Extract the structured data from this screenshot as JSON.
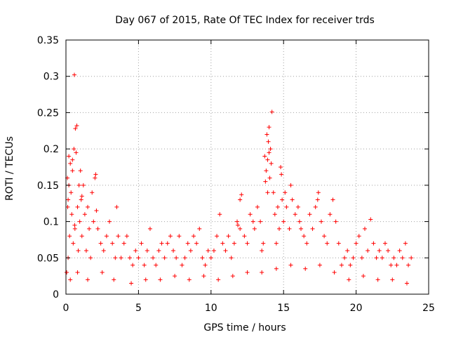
{
  "chart_data": {
    "type": "scatter",
    "title": "Day 067 of 2015, Rate Of TEC Index for receiver trds",
    "xlabel": "GPS time / hours",
    "ylabel": "ROTI / TECUs",
    "xlim": [
      0,
      25
    ],
    "ylim": [
      0,
      0.35
    ],
    "xticks": [
      0,
      5,
      10,
      15,
      20,
      25
    ],
    "xtick_labels": [
      "0",
      "5",
      "10",
      "15",
      "20",
      "25"
    ],
    "yticks": [
      0,
      0.05,
      0.1,
      0.15,
      0.2,
      0.25,
      0.3,
      0.35
    ],
    "ytick_labels": [
      "0",
      "0.05",
      "0.1",
      "0.15",
      "0.2",
      "0.25",
      "0.3",
      "0.35"
    ],
    "grid": true,
    "marker": "+",
    "marker_color": "#ff0000",
    "grid_color": "#a0a0a0",
    "series": [
      {
        "name": "ROTI",
        "points": [
          [
            0.05,
            0.03
          ],
          [
            0.1,
            0.16
          ],
          [
            0.12,
            0.12
          ],
          [
            0.15,
            0.05
          ],
          [
            0.2,
            0.19
          ],
          [
            0.25,
            0.08
          ],
          [
            0.3,
            0.18
          ],
          [
            0.35,
            0.14
          ],
          [
            0.4,
            0.11
          ],
          [
            0.45,
            0.17
          ],
          [
            0.5,
            0.07
          ],
          [
            0.55,
            0.2
          ],
          [
            0.58,
            0.302
          ],
          [
            0.62,
            0.09
          ],
          [
            0.65,
            0.228
          ],
          [
            0.7,
            0.195
          ],
          [
            0.75,
            0.232
          ],
          [
            0.8,
            0.12
          ],
          [
            0.85,
            0.06
          ],
          [
            0.9,
            0.15
          ],
          [
            0.95,
            0.1
          ],
          [
            1.0,
            0.17
          ],
          [
            1.05,
            0.13
          ],
          [
            1.1,
            0.08
          ],
          [
            1.2,
            0.15
          ],
          [
            1.3,
            0.11
          ],
          [
            1.4,
            0.06
          ],
          [
            1.5,
            0.12
          ],
          [
            1.6,
            0.09
          ],
          [
            1.7,
            0.05
          ],
          [
            1.8,
            0.14
          ],
          [
            1.9,
            0.1
          ],
          [
            2.0,
            0.16
          ],
          [
            2.05,
            0.165
          ],
          [
            2.2,
            0.09
          ],
          [
            2.4,
            0.07
          ],
          [
            2.6,
            0.06
          ],
          [
            2.8,
            0.08
          ],
          [
            3.0,
            0.1
          ],
          [
            3.2,
            0.07
          ],
          [
            3.4,
            0.05
          ],
          [
            3.5,
            0.12
          ],
          [
            3.6,
            0.08
          ],
          [
            3.8,
            0.05
          ],
          [
            4.0,
            0.07
          ],
          [
            4.2,
            0.08
          ],
          [
            4.4,
            0.05
          ],
          [
            4.6,
            0.04
          ],
          [
            4.8,
            0.06
          ],
          [
            5.0,
            0.05
          ],
          [
            5.2,
            0.07
          ],
          [
            5.4,
            0.04
          ],
          [
            5.6,
            0.06
          ],
          [
            5.8,
            0.09
          ],
          [
            6.0,
            0.05
          ],
          [
            6.2,
            0.04
          ],
          [
            6.4,
            0.06
          ],
          [
            6.6,
            0.07
          ],
          [
            6.8,
            0.05
          ],
          [
            7.0,
            0.07
          ],
          [
            7.2,
            0.08
          ],
          [
            7.4,
            0.06
          ],
          [
            7.6,
            0.05
          ],
          [
            7.8,
            0.08
          ],
          [
            8.0,
            0.04
          ],
          [
            8.2,
            0.05
          ],
          [
            8.4,
            0.07
          ],
          [
            8.6,
            0.06
          ],
          [
            8.8,
            0.08
          ],
          [
            9.0,
            0.07
          ],
          [
            9.2,
            0.09
          ],
          [
            9.4,
            0.05
          ],
          [
            9.6,
            0.04
          ],
          [
            9.8,
            0.06
          ],
          [
            10.0,
            0.05
          ],
          [
            10.2,
            0.06
          ],
          [
            10.4,
            0.08
          ],
          [
            10.6,
            0.11
          ],
          [
            10.8,
            0.07
          ],
          [
            11.0,
            0.06
          ],
          [
            11.2,
            0.08
          ],
          [
            11.4,
            0.05
          ],
          [
            11.6,
            0.07
          ],
          [
            11.8,
            0.1
          ],
          [
            12.0,
            0.09
          ],
          [
            12.1,
            0.137
          ],
          [
            12.3,
            0.08
          ],
          [
            12.5,
            0.07
          ],
          [
            12.7,
            0.11
          ],
          [
            12.9,
            0.1
          ],
          [
            13.0,
            0.09
          ],
          [
            13.2,
            0.12
          ],
          [
            13.4,
            0.1
          ],
          [
            13.5,
            0.06
          ],
          [
            13.6,
            0.07
          ],
          [
            13.7,
            0.19
          ],
          [
            13.8,
            0.17
          ],
          [
            13.85,
            0.22
          ],
          [
            13.9,
            0.14
          ],
          [
            13.95,
            0.21
          ],
          [
            14.0,
            0.23
          ],
          [
            14.05,
            0.16
          ],
          [
            14.1,
            0.2
          ],
          [
            14.15,
            0.18
          ],
          [
            14.2,
            0.251
          ],
          [
            14.3,
            0.14
          ],
          [
            14.4,
            0.11
          ],
          [
            14.5,
            0.07
          ],
          [
            14.6,
            0.12
          ],
          [
            14.7,
            0.09
          ],
          [
            14.8,
            0.175
          ],
          [
            14.9,
            0.13
          ],
          [
            15.0,
            0.1
          ],
          [
            15.2,
            0.12
          ],
          [
            15.4,
            0.09
          ],
          [
            15.5,
            0.15
          ],
          [
            15.6,
            0.13
          ],
          [
            15.8,
            0.11
          ],
          [
            16.0,
            0.12
          ],
          [
            16.2,
            0.09
          ],
          [
            16.4,
            0.08
          ],
          [
            16.6,
            0.07
          ],
          [
            16.8,
            0.11
          ],
          [
            17.0,
            0.09
          ],
          [
            17.2,
            0.12
          ],
          [
            17.4,
            0.14
          ],
          [
            17.6,
            0.1
          ],
          [
            17.8,
            0.08
          ],
          [
            18.0,
            0.07
          ],
          [
            18.2,
            0.11
          ],
          [
            18.4,
            0.13
          ],
          [
            18.6,
            0.1
          ],
          [
            18.8,
            0.07
          ],
          [
            19.0,
            0.04
          ],
          [
            19.2,
            0.05
          ],
          [
            19.4,
            0.06
          ],
          [
            19.6,
            0.04
          ],
          [
            19.8,
            0.05
          ],
          [
            20.0,
            0.07
          ],
          [
            20.2,
            0.08
          ],
          [
            20.4,
            0.05
          ],
          [
            20.6,
            0.09
          ],
          [
            20.8,
            0.06
          ],
          [
            21.0,
            0.103
          ],
          [
            21.2,
            0.07
          ],
          [
            21.4,
            0.05
          ],
          [
            21.6,
            0.06
          ],
          [
            21.8,
            0.05
          ],
          [
            22.0,
            0.07
          ],
          [
            22.2,
            0.06
          ],
          [
            22.4,
            0.04
          ],
          [
            22.6,
            0.05
          ],
          [
            22.8,
            0.04
          ],
          [
            23.0,
            0.06
          ],
          [
            23.2,
            0.05
          ],
          [
            23.4,
            0.07
          ],
          [
            23.6,
            0.04
          ],
          [
            23.8,
            0.05
          ],
          [
            0.3,
            0.02
          ],
          [
            0.8,
            0.03
          ],
          [
            1.5,
            0.02
          ],
          [
            2.5,
            0.03
          ],
          [
            3.3,
            0.02
          ],
          [
            4.5,
            0.015
          ],
          [
            5.5,
            0.02
          ],
          [
            6.5,
            0.02
          ],
          [
            7.5,
            0.025
          ],
          [
            8.5,
            0.02
          ],
          [
            9.5,
            0.025
          ],
          [
            10.5,
            0.02
          ],
          [
            11.5,
            0.025
          ],
          [
            12.5,
            0.03
          ],
          [
            13.5,
            0.03
          ],
          [
            14.5,
            0.035
          ],
          [
            15.5,
            0.04
          ],
          [
            16.5,
            0.035
          ],
          [
            17.5,
            0.04
          ],
          [
            18.5,
            0.03
          ],
          [
            19.5,
            0.02
          ],
          [
            20.5,
            0.025
          ],
          [
            21.5,
            0.02
          ],
          [
            22.5,
            0.02
          ],
          [
            23.5,
            0.015
          ],
          [
            2.1,
            0.115
          ],
          [
            1.1,
            0.135
          ],
          [
            0.6,
            0.095
          ],
          [
            13.75,
            0.155
          ],
          [
            14.85,
            0.165
          ],
          [
            16.1,
            0.1
          ],
          [
            17.35,
            0.13
          ],
          [
            12.0,
            0.13
          ],
          [
            11.85,
            0.095
          ],
          [
            15.1,
            0.14
          ],
          [
            13.9,
            0.185
          ],
          [
            14.0,
            0.195
          ],
          [
            0.45,
            0.185
          ],
          [
            0.2,
            0.15
          ],
          [
            0.15,
            0.13
          ]
        ]
      }
    ]
  }
}
